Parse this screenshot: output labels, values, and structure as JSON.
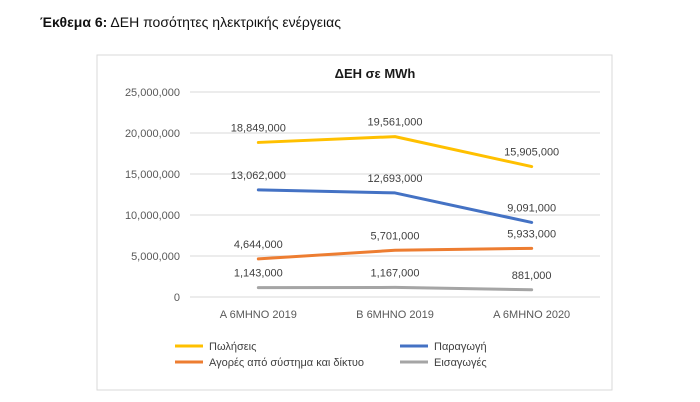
{
  "caption": {
    "prefix": "Έκθεμα 6:",
    "text": "ΔΕΗ ποσότητες ηλεκτρικής ενέργειας"
  },
  "chart_data": {
    "type": "line",
    "title": "ΔΕΗ σε MWh",
    "xlabel": "",
    "ylabel": "",
    "categories": [
      "Α 6ΜΗΝΟ 2019",
      "Β 6ΜΗΝΟ 2019",
      "Α 6ΜΗΝΟ 2020"
    ],
    "ylim": [
      0,
      25000000
    ],
    "yticks": [
      0,
      5000000,
      10000000,
      15000000,
      20000000,
      25000000
    ],
    "ytick_labels": [
      "0",
      "5,000,000",
      "10,000,000",
      "15,000,000",
      "20,000,000",
      "25,000,000"
    ],
    "grid": true,
    "legend_position": "bottom",
    "series": [
      {
        "name": "Πωλήσεις",
        "color": "#FFC000",
        "values": [
          18849000,
          19561000,
          15905000
        ],
        "labels": [
          "18,849,000",
          "19,561,000",
          "15,905,000"
        ]
      },
      {
        "name": "Παραγωγή",
        "color": "#4472C4",
        "values": [
          13062000,
          12693000,
          9091000
        ],
        "labels": [
          "13,062,000",
          "12,693,000",
          "9,091,000"
        ]
      },
      {
        "name": "Αγορές από σύστημα και δίκτυο",
        "color": "#ED7D31",
        "values": [
          4644000,
          5701000,
          5933000
        ],
        "labels": [
          "4,644,000",
          "5,701,000",
          "5,933,000"
        ]
      },
      {
        "name": "Εισαγωγές",
        "color": "#A5A5A5",
        "values": [
          1143000,
          1167000,
          881000
        ],
        "labels": [
          "1,143,000",
          "1,167,000",
          "881,000"
        ]
      }
    ]
  }
}
